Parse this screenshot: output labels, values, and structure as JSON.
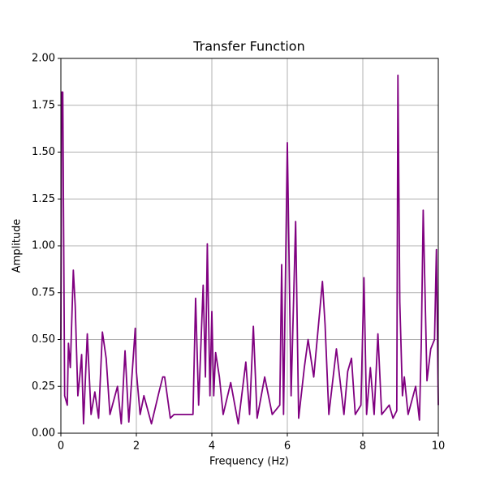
{
  "chart_data": {
    "type": "line",
    "title": "Transfer Function",
    "x_label": "Frequency (Hz)",
    "y_label": "Amplitude",
    "xlim": [
      0,
      10
    ],
    "ylim": [
      0,
      2
    ],
    "xticks": [
      0,
      2,
      4,
      6,
      8,
      10
    ],
    "yticks": [
      {
        "value": 0,
        "label": "0.00"
      },
      {
        "value": 0.25,
        "label": "0.25"
      },
      {
        "value": 0.5,
        "label": "0.50"
      },
      {
        "value": 0.75,
        "label": "0.75"
      },
      {
        "value": 1,
        "label": "1.00"
      },
      {
        "value": 1.25,
        "label": "1.25"
      },
      {
        "value": 1.5,
        "label": "1.50"
      },
      {
        "value": 1.75,
        "label": "1.75"
      },
      {
        "value": 2,
        "label": "2.00"
      }
    ],
    "grid": true,
    "x": [
      0,
      0.02,
      0.05,
      0.1,
      0.17,
      0.2,
      0.25,
      0.33,
      0.38,
      0.45,
      0.5,
      0.55,
      0.6,
      0.7,
      0.8,
      0.9,
      1.0,
      1.1,
      1.2,
      1.3,
      1.5,
      1.6,
      1.7,
      1.8,
      1.97,
      2.0,
      2.1,
      2.2,
      2.4,
      2.6,
      2.7,
      2.75,
      2.9,
      3.0,
      3.3,
      3.5,
      3.57,
      3.65,
      3.77,
      3.83,
      3.88,
      3.95,
      4.0,
      4.05,
      4.1,
      4.2,
      4.3,
      4.5,
      4.7,
      4.9,
      5.0,
      5.1,
      5.2,
      5.4,
      5.6,
      5.8,
      5.85,
      5.9,
      6.0,
      6.1,
      6.22,
      6.3,
      6.45,
      6.55,
      6.7,
      6.93,
      7.0,
      7.1,
      7.3,
      7.5,
      7.6,
      7.7,
      7.8,
      7.95,
      8.03,
      8.1,
      8.2,
      8.3,
      8.4,
      8.5,
      8.7,
      8.8,
      8.9,
      8.93,
      8.98,
      9.05,
      9.1,
      9.2,
      9.4,
      9.5,
      9.55,
      9.6,
      9.7,
      9.8,
      9.9,
      9.95,
      10
    ],
    "series": [
      {
        "name": "Amplitude",
        "color": "purple",
        "values": [
          0.5,
          1.82,
          1.82,
          0.2,
          0.15,
          0.48,
          0.35,
          0.87,
          0.68,
          0.2,
          0.3,
          0.42,
          0.05,
          0.53,
          0.1,
          0.22,
          0.08,
          0.54,
          0.4,
          0.1,
          0.25,
          0.05,
          0.44,
          0.06,
          0.56,
          0.33,
          0.1,
          0.2,
          0.05,
          0.22,
          0.3,
          0.3,
          0.08,
          0.1,
          0.1,
          0.1,
          0.72,
          0.15,
          0.79,
          0.3,
          1.01,
          0.2,
          0.65,
          0.2,
          0.43,
          0.3,
          0.1,
          0.27,
          0.05,
          0.38,
          0.1,
          0.57,
          0.08,
          0.3,
          0.1,
          0.15,
          0.9,
          0.1,
          1.55,
          0.2,
          1.13,
          0.08,
          0.35,
          0.5,
          0.3,
          0.81,
          0.58,
          0.1,
          0.45,
          0.1,
          0.33,
          0.4,
          0.1,
          0.15,
          0.83,
          0.1,
          0.35,
          0.1,
          0.53,
          0.1,
          0.15,
          0.08,
          0.12,
          1.91,
          0.7,
          0.2,
          0.3,
          0.1,
          0.25,
          0.07,
          0.49,
          1.19,
          0.28,
          0.45,
          0.5,
          0.98,
          0.15
        ]
      }
    ]
  }
}
